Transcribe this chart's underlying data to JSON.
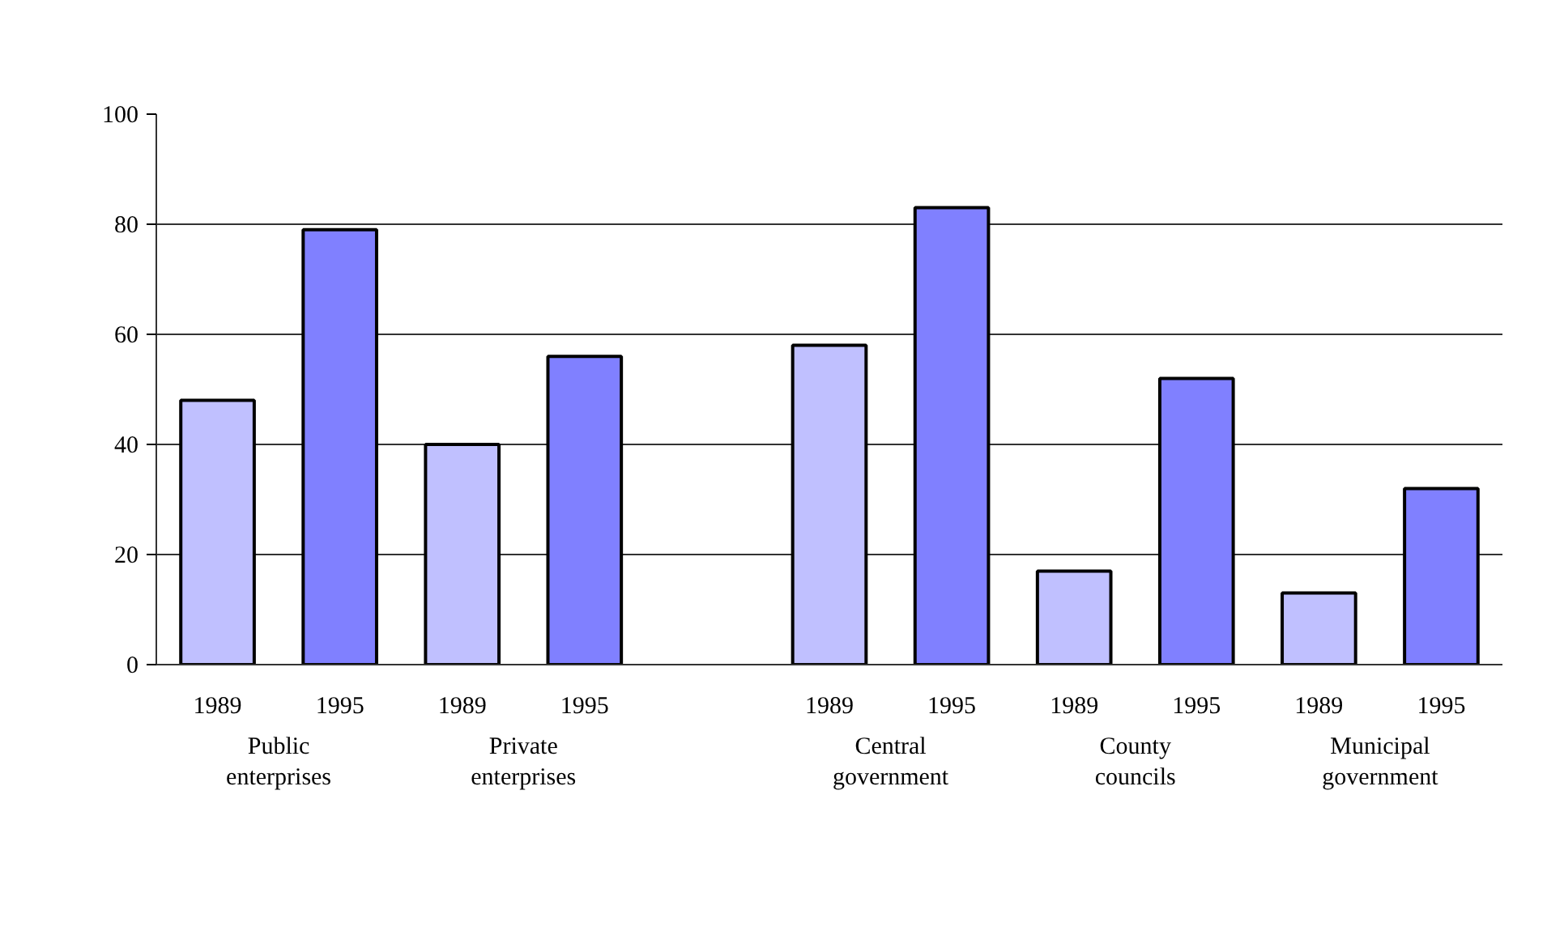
{
  "chart_data": {
    "type": "bar",
    "categories": [
      "1989",
      "1995",
      "1989",
      "1995",
      null,
      "1989",
      "1995",
      "1989",
      "1995",
      "1989",
      "1995"
    ],
    "values": [
      48,
      79,
      40,
      56,
      null,
      58,
      83,
      17,
      52,
      13,
      32
    ],
    "colors": [
      "#c0c0ff",
      "#8080ff",
      "#c0c0ff",
      "#8080ff",
      "#c0c0ff",
      "#c0c0ff",
      "#8080ff",
      "#c0c0ff",
      "#8080ff",
      "#c0c0ff",
      "#8080ff"
    ],
    "ylim": [
      0,
      100
    ],
    "yticks": [
      0,
      20,
      40,
      60,
      80,
      100
    ],
    "grid": "y",
    "annotations": [
      "Public enterprises",
      "Private enterprises",
      "Central government",
      "County councils",
      "Municipal government"
    ]
  }
}
